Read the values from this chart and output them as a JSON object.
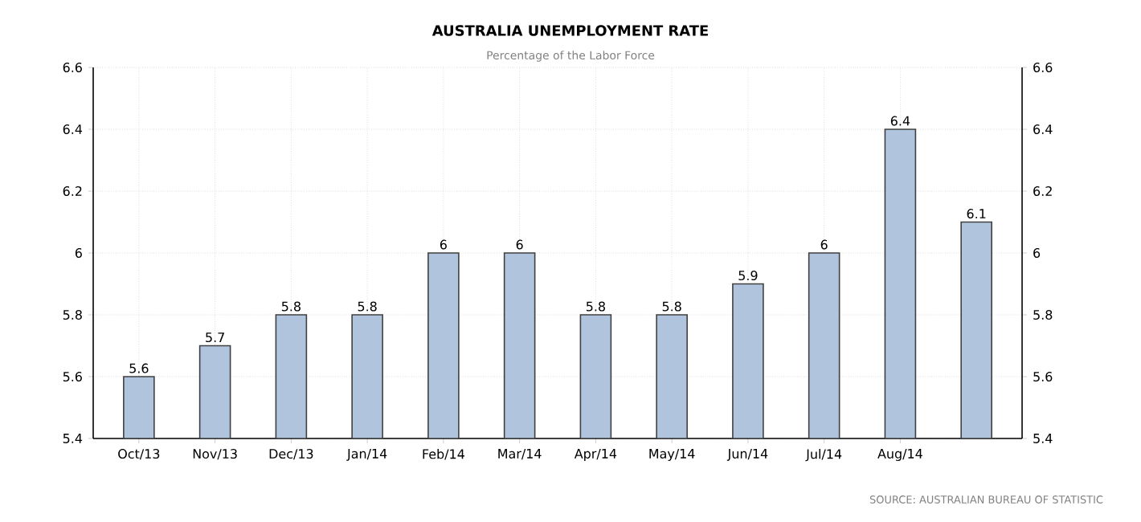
{
  "chart_data": {
    "type": "bar",
    "title": "AUSTRALIA UNEMPLOYMENT RATE",
    "subtitle": "Percentage of the Labor Force",
    "categories": [
      "Oct/13",
      "Nov/13",
      "Dec/13",
      "Jan/14",
      "Feb/14",
      "Mar/14",
      "Apr/14",
      "May/14",
      "Jun/14",
      "Jul/14",
      "Aug/14",
      null
    ],
    "values": [
      5.6,
      5.7,
      5.8,
      5.8,
      6,
      6,
      5.8,
      5.8,
      5.9,
      6,
      6.4,
      6.1
    ],
    "color": "#b0c4de",
    "data_labels": true,
    "grid": true,
    "ylim": [
      5.4,
      6.6
    ],
    "yticks": [
      5.4,
      5.6,
      5.8,
      6,
      6.2,
      6.4,
      6.6
    ],
    "y2lim": [
      5.4,
      6.6
    ],
    "y2ticks": [
      5.4,
      5.6,
      5.8,
      6,
      6.2,
      6.4,
      6.6
    ],
    "annotations": [
      "SOURCE: AUSTRALIAN BUREAU OF STATISTIC"
    ]
  }
}
